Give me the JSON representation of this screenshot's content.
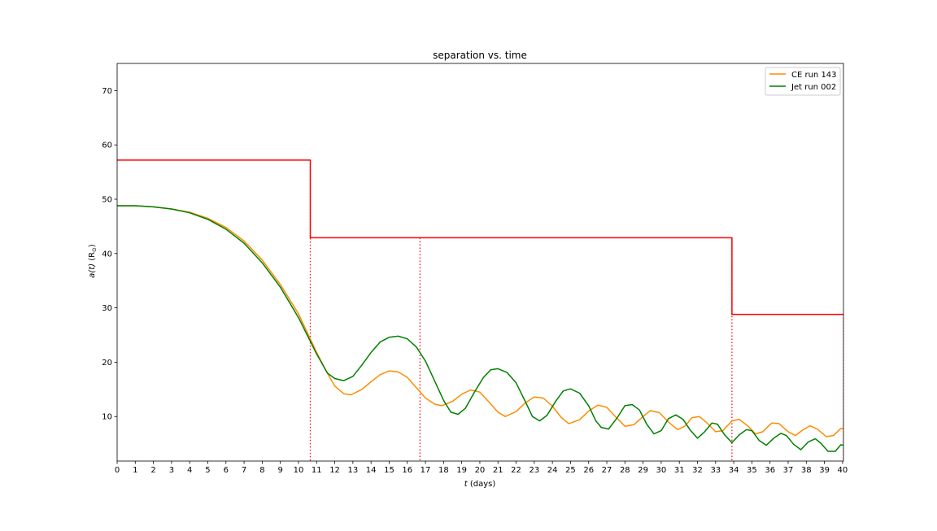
{
  "chart_data": {
    "type": "line",
    "title": "separation vs. time",
    "xlabel_italic": "t",
    "xlabel_rest": " (days)",
    "ylabel_italic": "a(t)",
    "ylabel_rest": " (R",
    "ylabel_sub": "⊙",
    "ylabel_close": ")",
    "xlim": [
      0,
      40.05
    ],
    "ylim": [
      1.8,
      75
    ],
    "xticks": [
      0,
      1,
      2,
      3,
      4,
      5,
      6,
      7,
      8,
      9,
      10,
      11,
      12,
      13,
      14,
      15,
      16,
      17,
      18,
      19,
      20,
      21,
      22,
      23,
      24,
      25,
      26,
      27,
      28,
      29,
      30,
      31,
      32,
      33,
      34,
      35,
      36,
      37,
      38,
      39,
      40
    ],
    "yticks": [
      10,
      20,
      30,
      40,
      50,
      60,
      70
    ],
    "grid": false,
    "legend_position": "top-right",
    "series": [
      {
        "name": "CE run 143",
        "color": "#ff8c00",
        "points": [
          [
            0,
            48.8
          ],
          [
            1,
            48.8
          ],
          [
            2,
            48.6
          ],
          [
            3,
            48.2
          ],
          [
            4,
            47.6
          ],
          [
            5,
            46.5
          ],
          [
            6,
            44.8
          ],
          [
            7,
            42.3
          ],
          [
            8,
            38.8
          ],
          [
            9,
            34.3
          ],
          [
            10,
            28.9
          ],
          [
            11,
            21.8
          ],
          [
            11.5,
            18.5
          ],
          [
            12,
            15.6
          ],
          [
            12.5,
            14.2
          ],
          [
            12.9,
            14.0
          ],
          [
            13.5,
            15.0
          ],
          [
            14,
            16.4
          ],
          [
            14.5,
            17.7
          ],
          [
            15,
            18.4
          ],
          [
            15.5,
            18.2
          ],
          [
            16,
            17.2
          ],
          [
            16.5,
            15.3
          ],
          [
            17,
            13.4
          ],
          [
            17.5,
            12.3
          ],
          [
            17.9,
            12.0
          ],
          [
            18.5,
            12.8
          ],
          [
            19,
            14.1
          ],
          [
            19.5,
            14.9
          ],
          [
            20,
            14.5
          ],
          [
            20.5,
            12.7
          ],
          [
            21,
            10.8
          ],
          [
            21.4,
            10.0
          ],
          [
            22,
            10.9
          ],
          [
            22.5,
            12.5
          ],
          [
            23,
            13.6
          ],
          [
            23.5,
            13.4
          ],
          [
            24,
            11.9
          ],
          [
            24.5,
            9.8
          ],
          [
            24.9,
            8.7
          ],
          [
            25.5,
            9.4
          ],
          [
            26,
            11.0
          ],
          [
            26.5,
            12.1
          ],
          [
            27,
            11.7
          ],
          [
            27.5,
            9.9
          ],
          [
            28,
            8.2
          ],
          [
            28.5,
            8.5
          ],
          [
            29,
            10.0
          ],
          [
            29.4,
            11.1
          ],
          [
            29.9,
            10.7
          ],
          [
            30.4,
            9.0
          ],
          [
            30.9,
            7.6
          ],
          [
            31.3,
            8.2
          ],
          [
            31.7,
            9.8
          ],
          [
            32.1,
            10.0
          ],
          [
            32.5,
            8.9
          ],
          [
            33,
            7.2
          ],
          [
            33.4,
            7.4
          ],
          [
            33.9,
            9.2
          ],
          [
            34.3,
            9.5
          ],
          [
            34.8,
            8.2
          ],
          [
            35.2,
            6.8
          ],
          [
            35.6,
            7.2
          ],
          [
            36.1,
            8.8
          ],
          [
            36.5,
            8.7
          ],
          [
            37,
            7.2
          ],
          [
            37.4,
            6.5
          ],
          [
            37.8,
            7.5
          ],
          [
            38.2,
            8.3
          ],
          [
            38.6,
            7.7
          ],
          [
            39.1,
            6.3
          ],
          [
            39.5,
            6.5
          ],
          [
            39.9,
            7.8
          ],
          [
            40.3,
            7.8
          ]
        ]
      },
      {
        "name": "Jet run 002",
        "color": "#008000",
        "points": [
          [
            0,
            48.8
          ],
          [
            1,
            48.8
          ],
          [
            2,
            48.6
          ],
          [
            3,
            48.2
          ],
          [
            4,
            47.5
          ],
          [
            5,
            46.3
          ],
          [
            6,
            44.5
          ],
          [
            7,
            41.9
          ],
          [
            8,
            38.3
          ],
          [
            9,
            33.8
          ],
          [
            10,
            28.2
          ],
          [
            11,
            21.5
          ],
          [
            11.6,
            18.0
          ],
          [
            12,
            17.0
          ],
          [
            12.5,
            16.6
          ],
          [
            13,
            17.4
          ],
          [
            13.5,
            19.5
          ],
          [
            14,
            21.8
          ],
          [
            14.5,
            23.7
          ],
          [
            15,
            24.6
          ],
          [
            15.5,
            24.8
          ],
          [
            16,
            24.3
          ],
          [
            16.5,
            22.8
          ],
          [
            17,
            20.2
          ],
          [
            17.5,
            16.6
          ],
          [
            18,
            13.0
          ],
          [
            18.4,
            10.8
          ],
          [
            18.8,
            10.4
          ],
          [
            19.2,
            11.5
          ],
          [
            19.7,
            14.5
          ],
          [
            20.2,
            17.2
          ],
          [
            20.6,
            18.6
          ],
          [
            21,
            18.8
          ],
          [
            21.5,
            18.1
          ],
          [
            22,
            16.2
          ],
          [
            22.5,
            12.8
          ],
          [
            22.9,
            10.0
          ],
          [
            23.3,
            9.2
          ],
          [
            23.7,
            10.2
          ],
          [
            24.2,
            12.9
          ],
          [
            24.6,
            14.7
          ],
          [
            25,
            15.1
          ],
          [
            25.5,
            14.3
          ],
          [
            26,
            12.0
          ],
          [
            26.4,
            9.2
          ],
          [
            26.7,
            8.0
          ],
          [
            27.1,
            7.7
          ],
          [
            27.6,
            9.9
          ],
          [
            28,
            12.0
          ],
          [
            28.4,
            12.2
          ],
          [
            28.8,
            11.2
          ],
          [
            29.2,
            8.6
          ],
          [
            29.6,
            6.8
          ],
          [
            30,
            7.4
          ],
          [
            30.4,
            9.6
          ],
          [
            30.8,
            10.3
          ],
          [
            31.2,
            9.5
          ],
          [
            31.6,
            7.5
          ],
          [
            32,
            6.0
          ],
          [
            32.4,
            7.2
          ],
          [
            32.8,
            8.8
          ],
          [
            33.1,
            8.6
          ],
          [
            33.5,
            6.6
          ],
          [
            33.9,
            5.2
          ],
          [
            34.3,
            6.6
          ],
          [
            34.7,
            7.6
          ],
          [
            35,
            7.4
          ],
          [
            35.4,
            5.6
          ],
          [
            35.8,
            4.7
          ],
          [
            36.2,
            6.0
          ],
          [
            36.6,
            6.9
          ],
          [
            36.9,
            6.5
          ],
          [
            37.3,
            4.9
          ],
          [
            37.7,
            3.9
          ],
          [
            38.1,
            5.3
          ],
          [
            38.5,
            5.9
          ],
          [
            38.8,
            5.1
          ],
          [
            39.2,
            3.6
          ],
          [
            39.6,
            3.6
          ],
          [
            39.9,
            4.8
          ],
          [
            40.3,
            4.6
          ]
        ]
      }
    ],
    "step_line": {
      "color": "#ff0000",
      "points": [
        [
          0,
          57.2
        ],
        [
          10.65,
          57.2
        ],
        [
          10.65,
          42.9
        ],
        [
          33.9,
          42.9
        ],
        [
          33.9,
          28.8
        ],
        [
          40.05,
          28.8
        ]
      ]
    },
    "vertical_markers": {
      "color": "#ff0000",
      "style": "dotted",
      "lines": [
        {
          "x": 10.65,
          "y_top": 57.2
        },
        {
          "x": 16.7,
          "y_top": 42.9
        },
        {
          "x": 33.9,
          "y_top": 42.9
        },
        {
          "x": 40.05,
          "y_top": 28.8
        }
      ]
    }
  }
}
